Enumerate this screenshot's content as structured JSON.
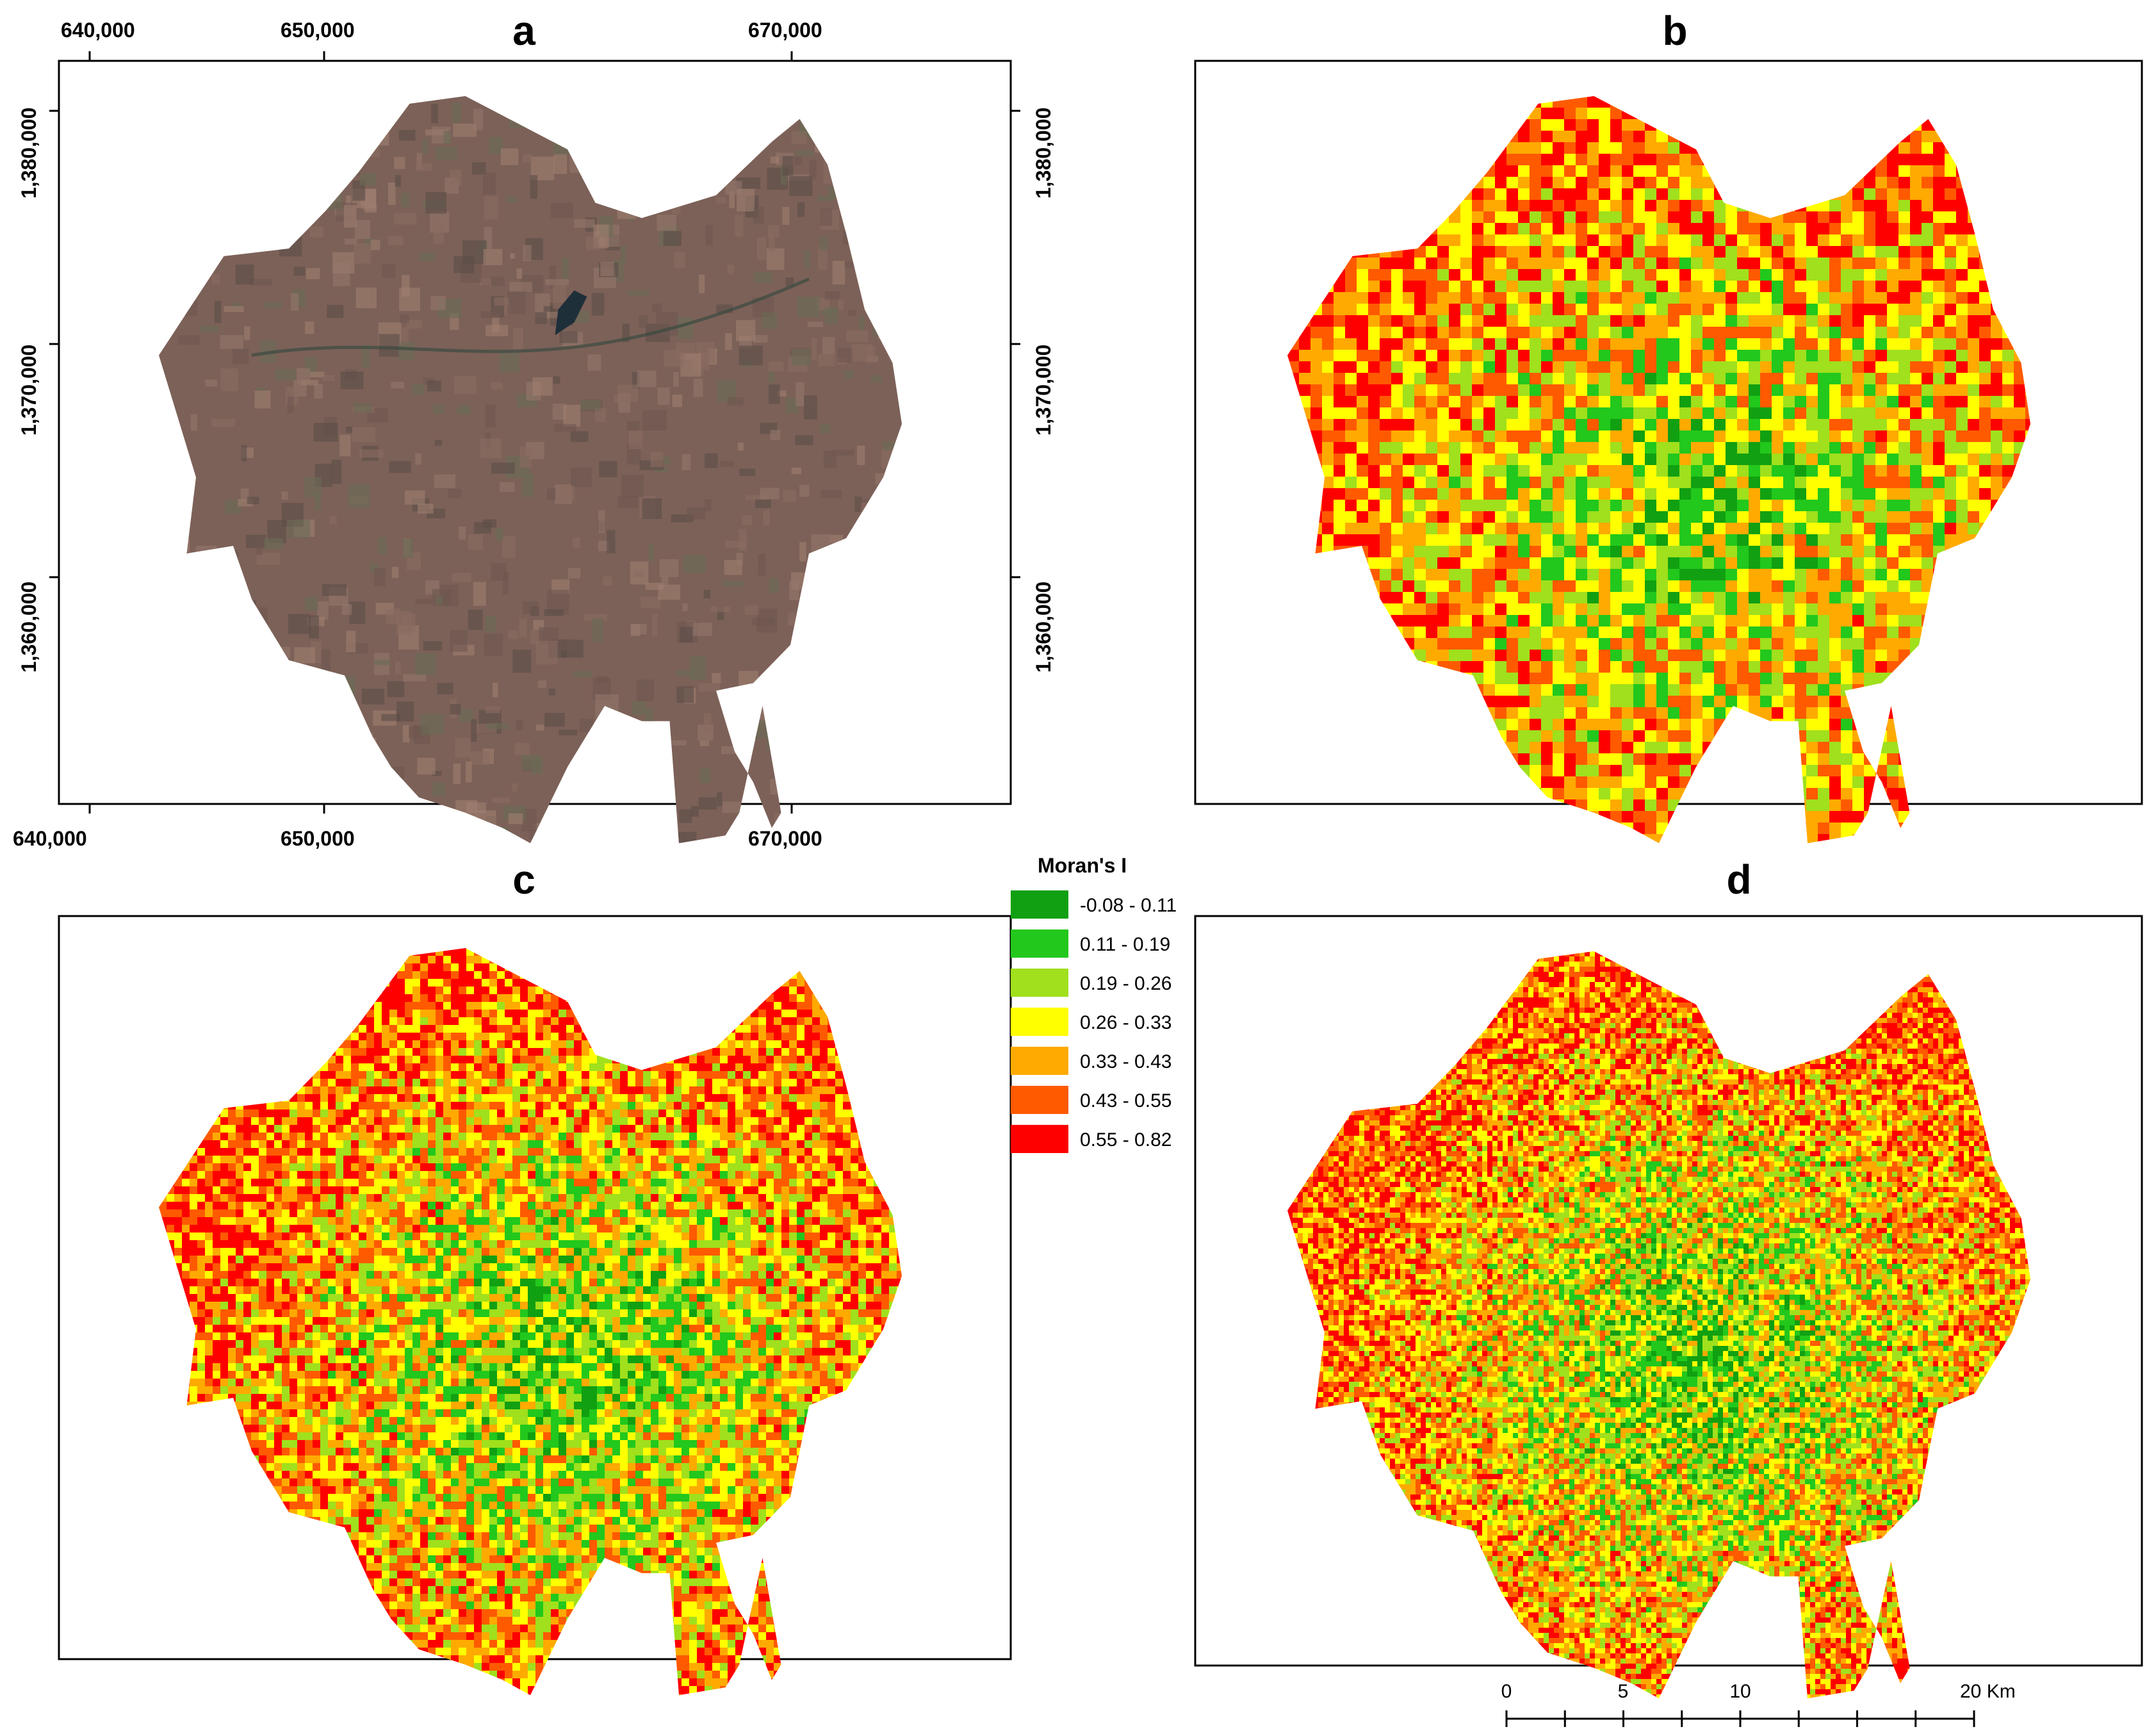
{
  "panels": {
    "a": {
      "letter": "a"
    },
    "b": {
      "letter": "b"
    },
    "c": {
      "letter": "c"
    },
    "d": {
      "letter": "d"
    }
  },
  "axes": {
    "easting_labels": [
      "640,000",
      "650,000",
      "670,000"
    ],
    "northing_labels": [
      "1,380,000",
      "1,370,000",
      "1,360,000"
    ]
  },
  "legend": {
    "title": "Moran's I",
    "classes": [
      {
        "label": "-0.08 - 0.11",
        "color": "#11a011"
      },
      {
        "label": "0.11 - 0.19",
        "color": "#22c81c"
      },
      {
        "label": "0.19 - 0.26",
        "color": "#a0e01c"
      },
      {
        "label": "0.26 - 0.33",
        "color": "#ffff00"
      },
      {
        "label": "0.33 - 0.43",
        "color": "#ffaa00"
      },
      {
        "label": "0.43 - 0.55",
        "color": "#ff5a00"
      },
      {
        "label": "0.55 - 0.82",
        "color": "#ff0000"
      }
    ]
  },
  "scalebar": {
    "labels": [
      "0",
      "5",
      "10",
      "20 Km"
    ]
  },
  "colors": {
    "satellite_base": "#7c6158",
    "satellite_dark": "#1e2f3a",
    "frame": "#000000"
  }
}
